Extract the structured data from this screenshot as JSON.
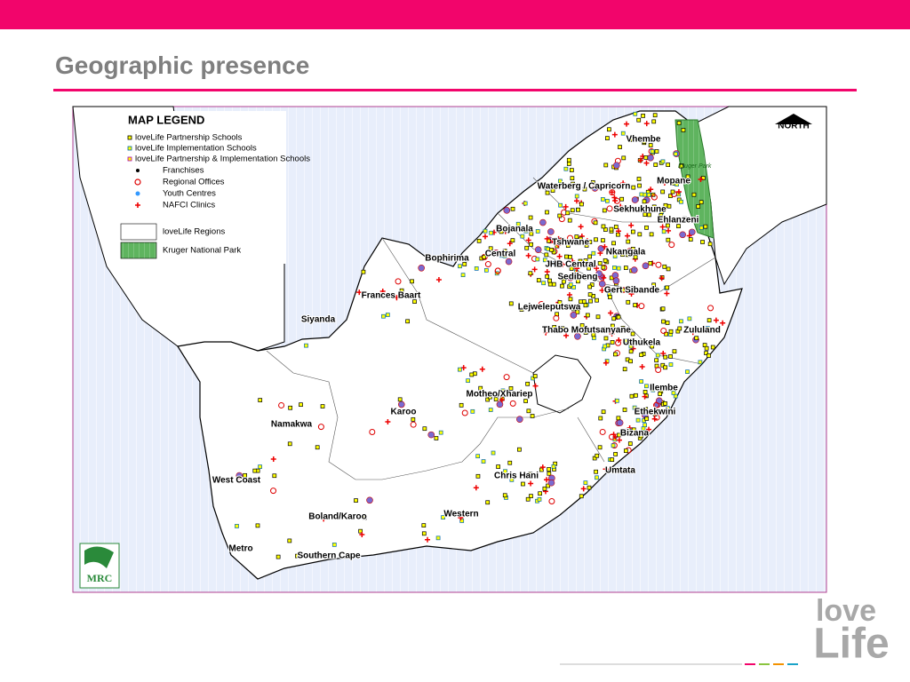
{
  "header": {
    "title": "Geographic presence"
  },
  "map": {
    "legend": {
      "title": "MAP LEGEND",
      "items": [
        "loveLife Partnership Schools",
        "loveLife Implementation Schools",
        "loveLife Partnership & Implementation Schools",
        "Franchises",
        "Regional Offices",
        "Youth Centres",
        "NAFCI Clinics",
        "loveLife Regions",
        "Kruger National Park"
      ]
    },
    "north": "NORTH",
    "kruger_label": "Kruger Park",
    "regions": [
      "Vhembe",
      "Mopane",
      "Waterberg / Capricorn",
      "Sekhukhune",
      "Ehlanzeni",
      "Bojanala",
      "Tshwane",
      "Central",
      "Nkangala",
      "Bophirima",
      "JHB Central",
      "Sedibeng",
      "Frances Baart",
      "Gert Sibande",
      "Lejweleputswa",
      "Siyanda",
      "Thabo Mofutsanyane",
      "Zululand",
      "Uthukela",
      "Ilembe",
      "Motheo/Xhariep",
      "Karoo",
      "Ethekwini",
      "Namakwa",
      "Bizana",
      "Umtata",
      "Chris Hani",
      "West Coast",
      "Western",
      "Boland/Karoo",
      "Metro",
      "Southern Cape"
    ]
  },
  "logos": {
    "mrc": "MRC",
    "lovelife": [
      "love",
      "Life"
    ]
  }
}
